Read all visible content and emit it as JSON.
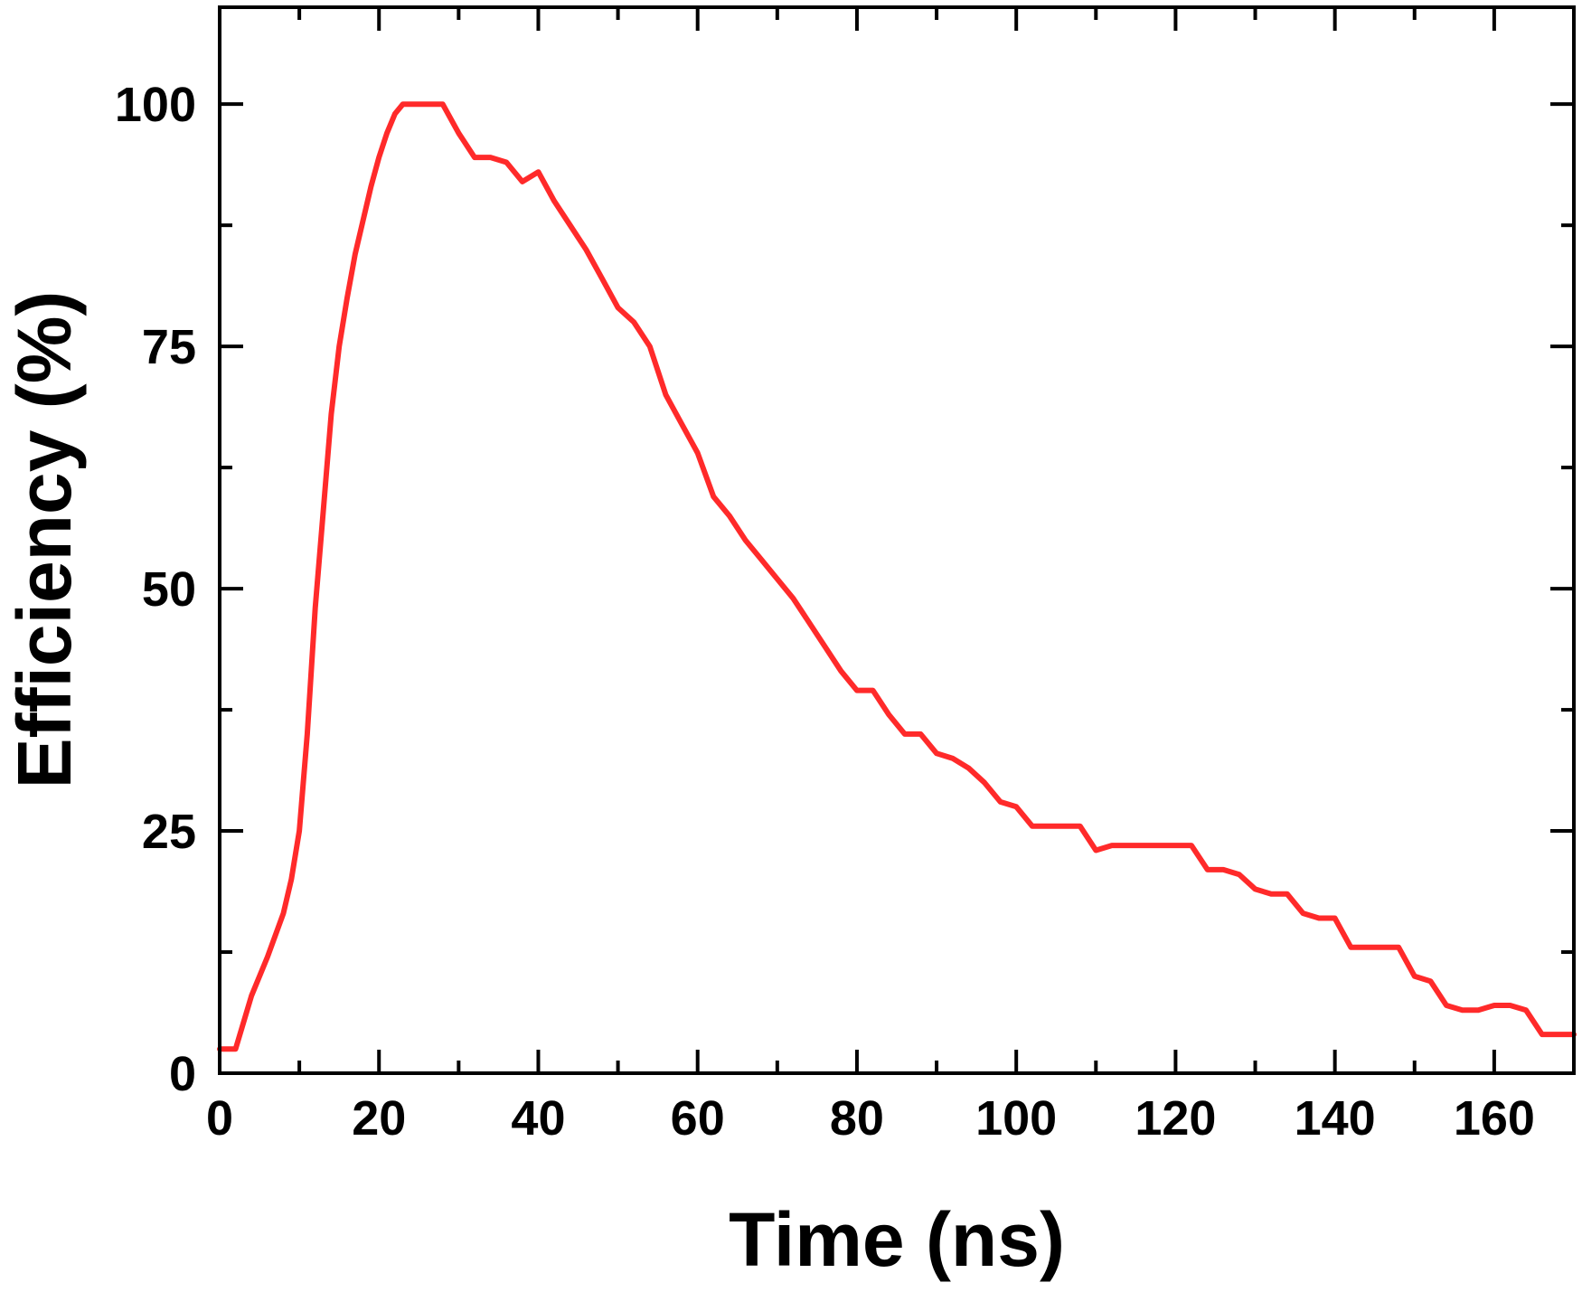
{
  "chart_data": {
    "type": "line",
    "xlabel": "Time (ns)",
    "ylabel": "Efficiency (%)",
    "xlim": [
      0,
      170
    ],
    "ylim": [
      0,
      110
    ],
    "x_ticks": [
      0,
      20,
      40,
      60,
      80,
      100,
      120,
      140,
      160
    ],
    "y_ticks": [
      0,
      25,
      50,
      75,
      100
    ],
    "x_minor_ticks": [
      10,
      30,
      50,
      70,
      90,
      110,
      130,
      150,
      170
    ],
    "y_minor_ticks": [
      12.5,
      37.5,
      62.5,
      87.5
    ],
    "grid": false,
    "legend": "none",
    "series": [
      {
        "color": "#ff2a2a",
        "x": [
          0,
          2,
          4,
          6,
          8,
          9,
          10,
          11,
          12,
          13,
          14,
          15,
          16,
          17,
          18,
          19,
          20,
          21,
          22,
          23,
          24,
          26,
          28,
          30,
          32,
          34,
          36,
          38,
          40,
          42,
          44,
          46,
          48,
          50,
          52,
          54,
          56,
          58,
          60,
          62,
          64,
          66,
          68,
          70,
          72,
          74,
          76,
          78,
          80,
          82,
          84,
          86,
          88,
          90,
          92,
          94,
          96,
          98,
          100,
          102,
          104,
          106,
          108,
          110,
          112,
          114,
          116,
          118,
          120,
          122,
          124,
          126,
          128,
          130,
          132,
          134,
          136,
          138,
          140,
          142,
          144,
          146,
          148,
          150,
          152,
          154,
          156,
          158,
          160,
          162,
          164,
          166,
          168,
          170
        ],
        "y": [
          2.5,
          2.5,
          8,
          12,
          16.5,
          20,
          25,
          35,
          48,
          58,
          68,
          75,
          80,
          84.5,
          88,
          91.5,
          94.5,
          97,
          99,
          100,
          100,
          100,
          100,
          97,
          94.5,
          94.5,
          94,
          92,
          93,
          90,
          87.5,
          85,
          82,
          79,
          77.5,
          75,
          70,
          67,
          64,
          59.5,
          57.5,
          55,
          53,
          51,
          49,
          46.5,
          44,
          41.5,
          39.5,
          39.5,
          37,
          35,
          35,
          33,
          32.5,
          31.5,
          30,
          28,
          27.5,
          25.5,
          25.5,
          25.5,
          25.5,
          23,
          23.5,
          23.5,
          23.5,
          23.5,
          23.5,
          23.5,
          21,
          21,
          20.5,
          19,
          18.5,
          18.5,
          16.5,
          16,
          16,
          13,
          13,
          13,
          13,
          10,
          9.5,
          7,
          6.5,
          6.5,
          7,
          7,
          6.5,
          4,
          4,
          4
        ]
      }
    ]
  }
}
